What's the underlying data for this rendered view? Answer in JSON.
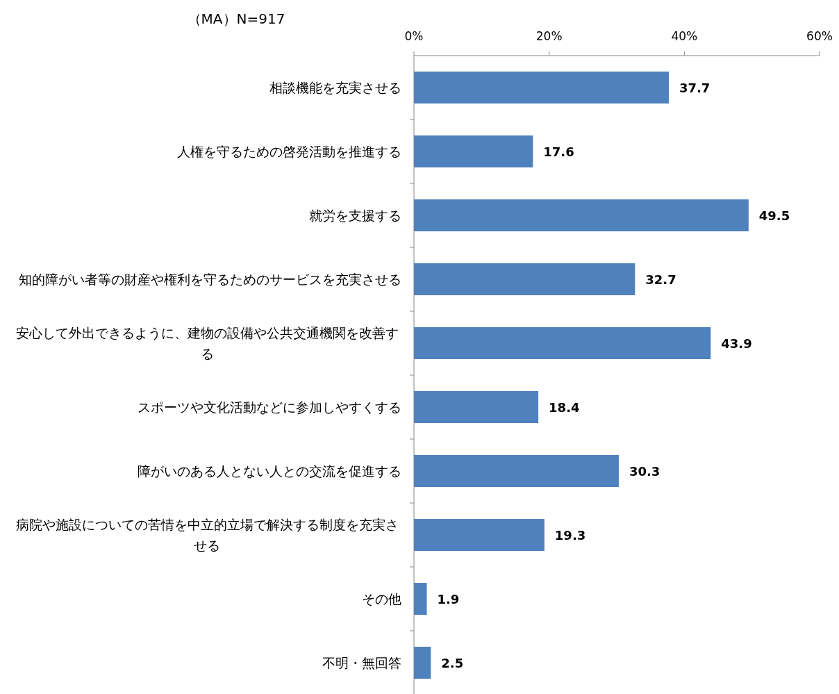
{
  "chart_data": {
    "type": "bar",
    "orientation": "horizontal",
    "title": "（MA）N=917",
    "categories": [
      "相談機能を充実させる",
      "人権を守るための啓発活動を推進する",
      "就労を支援する",
      "知的障がい者等の財産や権利を守るためのサービスを充実させる",
      "安心して外出できるように、建物の設備や公共交通機関を改善する",
      "スポーツや文化活動などに参加しやすくする",
      "障がいのある人とない人との交流を促進する",
      "病院や施設についての苦情を中立的立場で解決する制度を充実させる",
      "その他",
      "不明・無回答"
    ],
    "values": [
      37.7,
      17.6,
      49.5,
      32.7,
      43.9,
      18.4,
      30.3,
      19.3,
      1.9,
      2.5
    ],
    "color": "#4f81bd",
    "xlim": [
      0,
      60
    ],
    "xticks": [
      {
        "value": 0,
        "label": "0%"
      },
      {
        "value": 20,
        "label": "20%"
      },
      {
        "value": 40,
        "label": "40%"
      },
      {
        "value": 60,
        "label": "60%"
      }
    ],
    "data_labels": true
  }
}
